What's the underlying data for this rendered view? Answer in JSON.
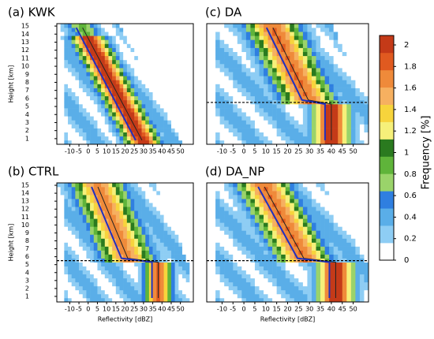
{
  "chart_data": [
    {
      "type": "heatmap",
      "title": "(a) KWK",
      "ylabel": "Height [km]",
      "xlim": [
        -17,
        57
      ],
      "ylim": [
        0.3,
        15.3
      ],
      "xticks": [
        -10,
        -5,
        0,
        5,
        10,
        15,
        20,
        25,
        30,
        35,
        40,
        45,
        50
      ],
      "yticks": [
        1,
        2,
        3,
        4,
        5,
        6,
        7,
        8,
        9,
        10,
        11,
        12,
        13,
        14,
        15
      ]
    },
    {
      "type": "heatmap",
      "title": "(c) DA",
      "xlim": [
        -17,
        57
      ],
      "ylim": [
        0.3,
        15.3
      ],
      "xticks": [
        -10,
        -5,
        0,
        5,
        10,
        15,
        20,
        25,
        30,
        35,
        40,
        45,
        50
      ]
    },
    {
      "type": "heatmap",
      "title": "(b) CTRL",
      "ylabel": "Height [km]",
      "xlabel": "Reflectivity [dBZ]",
      "xlim": [
        -17,
        57
      ],
      "ylim": [
        0.3,
        15.3
      ],
      "xticks": [
        -10,
        -5,
        0,
        5,
        10,
        15,
        20,
        25,
        30,
        35,
        40,
        45,
        50
      ],
      "yticks": [
        1,
        2,
        3,
        4,
        5,
        6,
        7,
        8,
        9,
        10,
        11,
        12,
        13,
        14,
        15
      ]
    },
    {
      "type": "heatmap",
      "title": "(d) DA_NP",
      "xlabel": "Reflectivity [dBZ]",
      "xlim": [
        -17,
        57
      ],
      "ylim": [
        0.3,
        15.3
      ],
      "xticks": [
        -10,
        -5,
        0,
        5,
        10,
        15,
        20,
        25,
        30,
        35,
        40,
        45,
        50
      ]
    }
  ],
  "colorbar": {
    "label": "Frequency [%]",
    "ticks": [
      0,
      0.2,
      0.4,
      0.6,
      0.8,
      1,
      1.2,
      1.4,
      1.6,
      1.8,
      2
    ],
    "colors": [
      "#ffffff",
      "#8ecdf4",
      "#5aaee8",
      "#2f7fe0",
      "#9ad36a",
      "#5fb43a",
      "#2a7a1f",
      "#f6f07a",
      "#f7d43c",
      "#f6b060",
      "#ef8a3a",
      "#e05a20",
      "#c43a18"
    ]
  }
}
